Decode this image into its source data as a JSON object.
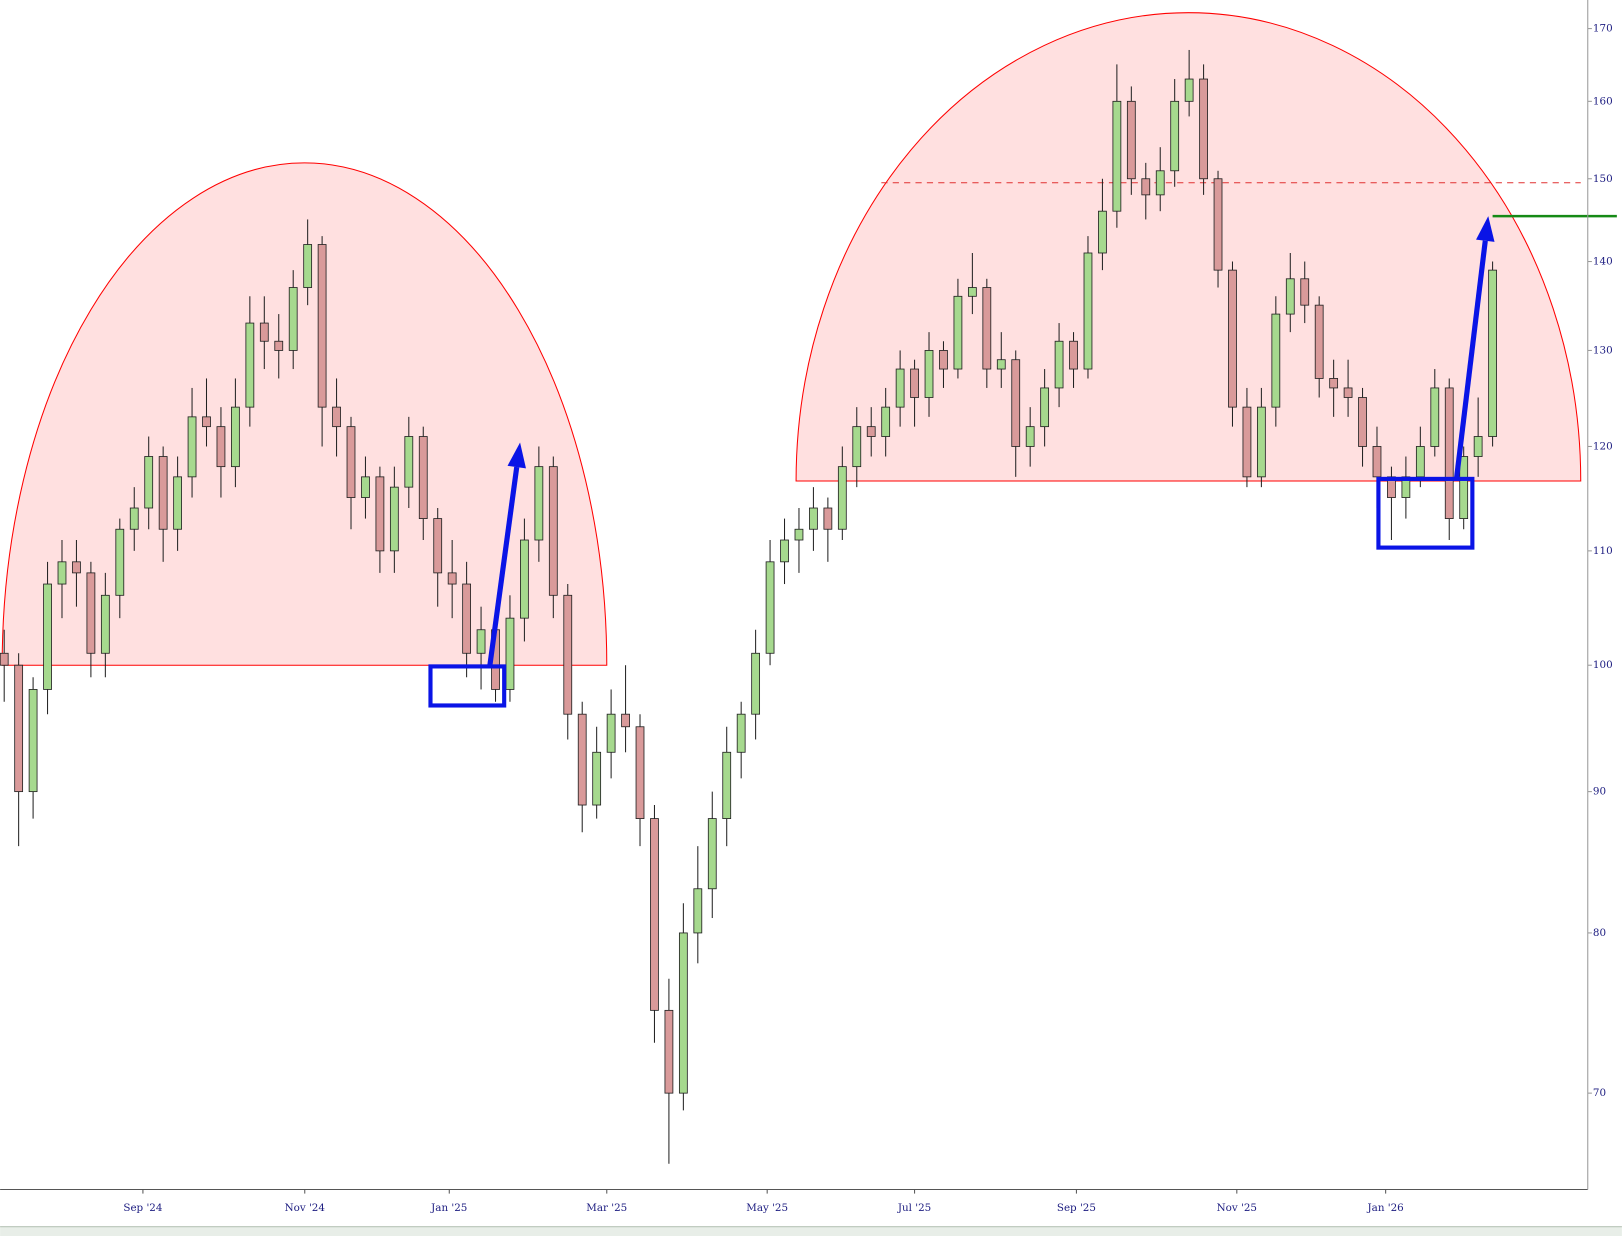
{
  "chart_data": {
    "type": "candlestick",
    "log": true,
    "up_color": "#a6d98e",
    "down_color": "#d99a9a",
    "ylim": [
      64.6,
      174.1
    ],
    "yticks": [
      70,
      80,
      90,
      100,
      110,
      120,
      130,
      140,
      150,
      160,
      170
    ],
    "xlim": [
      -0.14,
      109.3
    ],
    "xticks": [
      {
        "value": 9.6,
        "label": "Sep '24"
      },
      {
        "value": 20.8,
        "label": "Nov '24"
      },
      {
        "value": 30.8,
        "label": "Jan '25"
      },
      {
        "value": 41.7,
        "label": "Mar '25"
      },
      {
        "value": 52.8,
        "label": "May '25"
      },
      {
        "value": 63,
        "label": "Jul '25"
      },
      {
        "value": 74.2,
        "label": "Sep '25"
      },
      {
        "value": 85.3,
        "label": "Nov '25"
      },
      {
        "value": 95.6,
        "label": "Jan '26"
      }
    ],
    "candles": [
      [
        101,
        103,
        97,
        100
      ],
      [
        100,
        101,
        86,
        90
      ],
      [
        90,
        99,
        88,
        98
      ],
      [
        98,
        109,
        96,
        107
      ],
      [
        107,
        111,
        104,
        109
      ],
      [
        109,
        111,
        105,
        108
      ],
      [
        108,
        109,
        99,
        101
      ],
      [
        101,
        108,
        99,
        106
      ],
      [
        106,
        113,
        104,
        112
      ],
      [
        112,
        116,
        110,
        114
      ],
      [
        114,
        121,
        112,
        119
      ],
      [
        119,
        120,
        109,
        112
      ],
      [
        112,
        119,
        110,
        117
      ],
      [
        117,
        126,
        115,
        123
      ],
      [
        123,
        127,
        120,
        122
      ],
      [
        122,
        124,
        115,
        118
      ],
      [
        118,
        127,
        116,
        124
      ],
      [
        124,
        136,
        122,
        133
      ],
      [
        133,
        136,
        128,
        131
      ],
      [
        131,
        134,
        127,
        130
      ],
      [
        130,
        139,
        128,
        137
      ],
      [
        137,
        145,
        135,
        142
      ],
      [
        142,
        143,
        120,
        124
      ],
      [
        124,
        127,
        119,
        122
      ],
      [
        122,
        123,
        112,
        115
      ],
      [
        115,
        119,
        113,
        117
      ],
      [
        117,
        118,
        108,
        110
      ],
      [
        110,
        118,
        108,
        116
      ],
      [
        116,
        123,
        114,
        121
      ],
      [
        121,
        122,
        111,
        113
      ],
      [
        113,
        114,
        105,
        108
      ],
      [
        108,
        111,
        104,
        107
      ],
      [
        107,
        109,
        99,
        101
      ],
      [
        101,
        105,
        98,
        103
      ],
      [
        103,
        104,
        97,
        98
      ],
      [
        98,
        106,
        97,
        104
      ],
      [
        104,
        113,
        102,
        111
      ],
      [
        111,
        120,
        109,
        118
      ],
      [
        118,
        119,
        104,
        106
      ],
      [
        106,
        107,
        94,
        96
      ],
      [
        96,
        97,
        87,
        89
      ],
      [
        89,
        95,
        88,
        93
      ],
      [
        93,
        98,
        91,
        96
      ],
      [
        96,
        100,
        93,
        95
      ],
      [
        95,
        96,
        86,
        88
      ],
      [
        88,
        89,
        73,
        75
      ],
      [
        75,
        77,
        66,
        70
      ],
      [
        70,
        82,
        69,
        80
      ],
      [
        80,
        86,
        78,
        83
      ],
      [
        83,
        90,
        81,
        88
      ],
      [
        88,
        95,
        86,
        93
      ],
      [
        93,
        97,
        91,
        96
      ],
      [
        96,
        103,
        94,
        101
      ],
      [
        101,
        111,
        100,
        109
      ],
      [
        109,
        113,
        107,
        111
      ],
      [
        111,
        114,
        108,
        112
      ],
      [
        112,
        116,
        110,
        114
      ],
      [
        114,
        115,
        109,
        112
      ],
      [
        112,
        120,
        111,
        118
      ],
      [
        118,
        124,
        116,
        122
      ],
      [
        122,
        124,
        119,
        121
      ],
      [
        121,
        126,
        119,
        124
      ],
      [
        124,
        130,
        122,
        128
      ],
      [
        128,
        129,
        122,
        125
      ],
      [
        125,
        132,
        123,
        130
      ],
      [
        130,
        131,
        126,
        128
      ],
      [
        128,
        138,
        127,
        136
      ],
      [
        136,
        141,
        134,
        137
      ],
      [
        137,
        138,
        126,
        128
      ],
      [
        128,
        132,
        126,
        129
      ],
      [
        129,
        130,
        117,
        120
      ],
      [
        120,
        124,
        118,
        122
      ],
      [
        122,
        128,
        120,
        126
      ],
      [
        126,
        133,
        124,
        131
      ],
      [
        131,
        132,
        126,
        128
      ],
      [
        128,
        143,
        127,
        141
      ],
      [
        141,
        150,
        139,
        146
      ],
      [
        146,
        165,
        144,
        160
      ],
      [
        160,
        162,
        148,
        150
      ],
      [
        150,
        152,
        145,
        148
      ],
      [
        148,
        154,
        146,
        151
      ],
      [
        151,
        163,
        149,
        160
      ],
      [
        160,
        167,
        158,
        163
      ],
      [
        163,
        165,
        148,
        150
      ],
      [
        150,
        151,
        137,
        139
      ],
      [
        139,
        140,
        122,
        124
      ],
      [
        124,
        126,
        116,
        117
      ],
      [
        117,
        126,
        116,
        124
      ],
      [
        124,
        136,
        122,
        134
      ],
      [
        134,
        141,
        132,
        138
      ],
      [
        138,
        140,
        133,
        135
      ],
      [
        135,
        136,
        125,
        127
      ],
      [
        127,
        129,
        123,
        126
      ],
      [
        126,
        129,
        123,
        125
      ],
      [
        125,
        126,
        118,
        120
      ],
      [
        120,
        122,
        114,
        117
      ],
      [
        117,
        118,
        111,
        115
      ],
      [
        115,
        119,
        113,
        117
      ],
      [
        117,
        122,
        116,
        120
      ],
      [
        120,
        128,
        119,
        126
      ],
      [
        126,
        127,
        111,
        113
      ],
      [
        113,
        120,
        112,
        119
      ],
      [
        119,
        125,
        117,
        121
      ],
      [
        121,
        140,
        120,
        139
      ]
    ],
    "domes": [
      {
        "x": [
          -0.14,
          41.7
        ],
        "base": 100,
        "top": 152,
        "color": "#ff0000"
      },
      {
        "x": [
          54.8,
          109.1
        ],
        "base": 116.6,
        "top": 172.3,
        "color": "#ff0000"
      }
    ],
    "levels": [
      {
        "x": [
          60.7,
          109.1
        ],
        "value": 149.5,
        "color": "#e03030",
        "dashed": true
      },
      {
        "x": [
          103,
          111.6
        ],
        "value": 145.4,
        "color": "#168a16",
        "dashed": false
      }
    ],
    "boxes": [
      {
        "x": [
          29.5,
          34.6
        ],
        "y": [
          96.7,
          99.9
        ],
        "color": "#0a14e6"
      },
      {
        "x": [
          95.1,
          101.6
        ],
        "y": [
          110.3,
          116.8
        ],
        "color": "#0a14e6"
      }
    ],
    "arrows": [
      {
        "x": [
          33.6,
          35.7
        ],
        "y": [
          99.9,
          120.4
        ],
        "color": "#0a14e6"
      },
      {
        "x": [
          100.5,
          102.7
        ],
        "y": [
          116.8,
          145.4
        ],
        "color": "#0a14e6"
      }
    ]
  }
}
